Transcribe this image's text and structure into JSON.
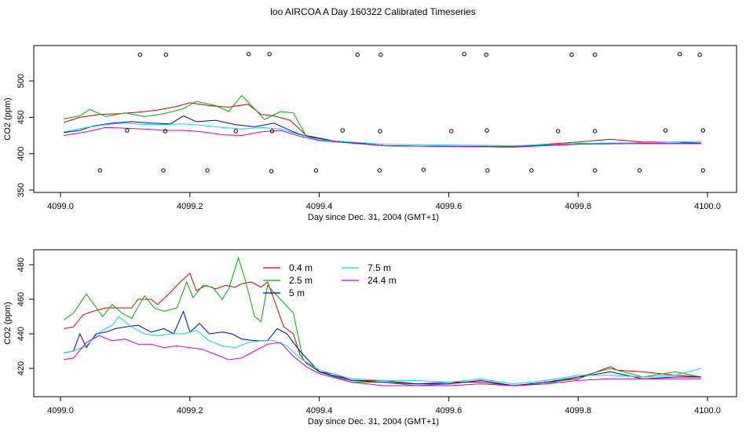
{
  "title": "loo AIRCOA A  Day 160322  Calibrated Timeseries",
  "chart_data": [
    {
      "type": "scatter",
      "panel": "top",
      "xlabel": "Day since Dec. 31, 2004 (GMT+1)",
      "ylabel": "CO2 (ppm)",
      "xlim": [
        4099.0,
        4100.0
      ],
      "ylim": [
        350,
        540
      ],
      "xticks": [
        4099.0,
        4099.2,
        4099.4,
        4099.6,
        4099.8,
        4100.0
      ],
      "xtick_labels": [
        "4099.0",
        "4099.2",
        "4099.4",
        "4099.6",
        "4099.8",
        "4100.0"
      ],
      "yticks": [
        350,
        400,
        450,
        500
      ],
      "ytick_labels": [
        "350",
        "400",
        "450",
        "500"
      ],
      "calibration_points": [
        {
          "x": 4099.123,
          "y": 536
        },
        {
          "x": 4099.163,
          "y": 536
        },
        {
          "x": 4099.291,
          "y": 537
        },
        {
          "x": 4099.323,
          "y": 537
        },
        {
          "x": 4099.459,
          "y": 536
        },
        {
          "x": 4099.495,
          "y": 536
        },
        {
          "x": 4099.624,
          "y": 537
        },
        {
          "x": 4099.658,
          "y": 536
        },
        {
          "x": 4099.79,
          "y": 536
        },
        {
          "x": 4099.826,
          "y": 536
        },
        {
          "x": 4099.957,
          "y": 537
        },
        {
          "x": 4099.988,
          "y": 536
        },
        {
          "x": 4099.103,
          "y": 432
        },
        {
          "x": 4099.162,
          "y": 431
        },
        {
          "x": 4099.271,
          "y": 431
        },
        {
          "x": 4099.327,
          "y": 431
        },
        {
          "x": 4099.436,
          "y": 432
        },
        {
          "x": 4099.494,
          "y": 431
        },
        {
          "x": 4099.604,
          "y": 431
        },
        {
          "x": 4099.659,
          "y": 432
        },
        {
          "x": 4099.769,
          "y": 431
        },
        {
          "x": 4099.826,
          "y": 431
        },
        {
          "x": 4099.935,
          "y": 432
        },
        {
          "x": 4099.993,
          "y": 432
        },
        {
          "x": 4099.061,
          "y": 377
        },
        {
          "x": 4099.159,
          "y": 377
        },
        {
          "x": 4099.227,
          "y": 377
        },
        {
          "x": 4099.326,
          "y": 376
        },
        {
          "x": 4099.395,
          "y": 377
        },
        {
          "x": 4099.493,
          "y": 377
        },
        {
          "x": 4099.561,
          "y": 378
        },
        {
          "x": 4099.66,
          "y": 377
        },
        {
          "x": 4099.728,
          "y": 377
        },
        {
          "x": 4099.826,
          "y": 377
        },
        {
          "x": 4099.895,
          "y": 377
        },
        {
          "x": 4099.993,
          "y": 377
        }
      ],
      "series": [
        {
          "color": "#d00000",
          "x": [
            4099.005,
            4099.03,
            4099.06,
            4099.09,
            4099.12,
            4099.15,
            4099.18,
            4099.2,
            4099.23,
            4099.26,
            4099.29,
            4099.31,
            4099.33,
            4099.355,
            4099.38,
            4099.42,
            4099.5,
            4099.6,
            4099.7,
            4099.8,
            4099.85,
            4099.9,
            4099.95,
            4099.99
          ],
          "y": [
            443,
            450,
            454,
            455,
            457,
            460,
            465,
            470,
            466,
            464,
            468,
            454,
            452,
            446,
            425,
            418,
            411,
            410,
            410,
            416,
            420,
            416,
            416,
            414
          ]
        },
        {
          "color": "#00aa00",
          "x": [
            4099.005,
            4099.03,
            4099.045,
            4099.07,
            4099.1,
            4099.13,
            4099.16,
            4099.19,
            4099.21,
            4099.24,
            4099.26,
            4099.28,
            4099.3,
            4099.315,
            4099.34,
            4099.36,
            4099.38,
            4099.42,
            4099.5,
            4099.6,
            4099.7,
            4099.8,
            4099.9,
            4099.95,
            4099.99
          ],
          "y": [
            448,
            452,
            461,
            451,
            456,
            451,
            455,
            462,
            472,
            466,
            458,
            480,
            462,
            447,
            458,
            456,
            424,
            418,
            411,
            410,
            410,
            414,
            415,
            416,
            415
          ]
        },
        {
          "color": "#0000cc",
          "x": [
            4099.005,
            4099.03,
            4099.05,
            4099.08,
            4099.11,
            4099.14,
            4099.17,
            4099.19,
            4099.21,
            4099.24,
            4099.27,
            4099.3,
            4099.33,
            4099.36,
            4099.38,
            4099.42,
            4099.5,
            4099.6,
            4099.7,
            4099.8,
            4099.9,
            4099.99
          ],
          "y": [
            429,
            432,
            438,
            442,
            444,
            442,
            441,
            452,
            444,
            446,
            440,
            437,
            442,
            430,
            424,
            418,
            411,
            410,
            409,
            414,
            414,
            414
          ]
        },
        {
          "color": "#00dddd",
          "x": [
            4099.005,
            4099.04,
            4099.07,
            4099.1,
            4099.13,
            4099.16,
            4099.19,
            4099.22,
            4099.25,
            4099.28,
            4099.31,
            4099.34,
            4099.37,
            4099.4,
            4099.5,
            4099.6,
            4099.7,
            4099.8,
            4099.9,
            4099.99
          ],
          "y": [
            430,
            436,
            440,
            442,
            440,
            440,
            441,
            439,
            436,
            434,
            436,
            434,
            426,
            419,
            413,
            412,
            411,
            414,
            415,
            417
          ]
        },
        {
          "color": "#cc00cc",
          "x": [
            4099.005,
            4099.04,
            4099.07,
            4099.1,
            4099.13,
            4099.16,
            4099.19,
            4099.22,
            4099.25,
            4099.28,
            4099.31,
            4099.34,
            4099.37,
            4099.4,
            4099.5,
            4099.6,
            4099.7,
            4099.8,
            4099.9,
            4099.99
          ],
          "y": [
            425,
            430,
            436,
            435,
            434,
            432,
            432,
            430,
            426,
            425,
            430,
            432,
            424,
            418,
            411,
            410,
            409,
            413,
            414,
            414
          ]
        }
      ]
    },
    {
      "type": "line",
      "panel": "bottom",
      "xlabel": "Day since Dec. 31, 2004 (GMT+1)",
      "ylabel": "CO2 (ppm)",
      "xlim": [
        4099.0,
        4100.0
      ],
      "ylim": [
        405,
        485
      ],
      "xticks": [
        4099.0,
        4099.2,
        4099.4,
        4099.6,
        4099.8,
        4100.0
      ],
      "xtick_labels": [
        "4099.0",
        "4099.2",
        "4099.4",
        "4099.6",
        "4099.8",
        "4100.0"
      ],
      "yticks": [
        420,
        440,
        460,
        480
      ],
      "ytick_labels": [
        "420",
        "440",
        "460",
        "480"
      ],
      "legend": {
        "placement": "top-left-inside",
        "order": [
          "0.4 m",
          "2.5 m",
          "5 m",
          "7.5 m",
          "24.4 m"
        ]
      },
      "series": [
        {
          "name": "0.4 m",
          "color": "#d00000",
          "x": [
            4099.005,
            4099.02,
            4099.035,
            4099.05,
            4099.07,
            4099.09,
            4099.11,
            4099.12,
            4099.14,
            4099.15,
            4099.17,
            4099.185,
            4099.2,
            4099.21,
            4099.225,
            4099.24,
            4099.255,
            4099.27,
            4099.28,
            4099.295,
            4099.31,
            4099.32,
            4099.33,
            4099.345,
            4099.36,
            4099.37,
            4099.38,
            4099.4,
            4099.42,
            4099.45,
            4099.5,
            4099.55,
            4099.6,
            4099.65,
            4099.7,
            4099.75,
            4099.8,
            4099.85,
            4099.86,
            4099.9,
            4099.95,
            4099.99
          ],
          "y": [
            443,
            444,
            451,
            453,
            455,
            455,
            455,
            460,
            460,
            457,
            464,
            470,
            475,
            465,
            468,
            466,
            468,
            467,
            469,
            470,
            467,
            470,
            460,
            444,
            440,
            428,
            423,
            418,
            417,
            413,
            413,
            411,
            412,
            412,
            410,
            412,
            414,
            421,
            419,
            418,
            416,
            415
          ]
        },
        {
          "name": "2.5 m",
          "color": "#00aa00",
          "x": [
            4099.005,
            4099.02,
            4099.04,
            4099.05,
            4099.065,
            4099.08,
            4099.095,
            4099.11,
            4099.13,
            4099.145,
            4099.16,
            4099.18,
            4099.195,
            4099.205,
            4099.22,
            4099.235,
            4099.25,
            4099.26,
            4099.275,
            4099.285,
            4099.3,
            4099.31,
            4099.32,
            4099.335,
            4099.345,
            4099.36,
            4099.375,
            4099.4,
            4099.45,
            4099.5,
            4099.55,
            4099.6,
            4099.65,
            4099.7,
            4099.75,
            4099.8,
            4099.85,
            4099.9,
            4099.95,
            4099.99
          ],
          "y": [
            448,
            452,
            463,
            458,
            450,
            457,
            452,
            449,
            462,
            455,
            453,
            455,
            470,
            461,
            468,
            467,
            460,
            466,
            484,
            472,
            450,
            447,
            468,
            462,
            458,
            452,
            425,
            418,
            412,
            412,
            410,
            411,
            413,
            410,
            411,
            415,
            420,
            415,
            418,
            415
          ]
        },
        {
          "name": "5 m",
          "color": "#0000cc",
          "x": [
            4099.005,
            4099.02,
            4099.03,
            4099.04,
            4099.055,
            4099.07,
            4099.085,
            4099.1,
            4099.12,
            4099.14,
            4099.16,
            4099.175,
            4099.19,
            4099.2,
            4099.215,
            4099.23,
            4099.25,
            4099.265,
            4099.28,
            4099.3,
            4099.32,
            4099.335,
            4099.35,
            4099.37,
            4099.4,
            4099.45,
            4099.5,
            4099.55,
            4099.6,
            4099.65,
            4099.7,
            4099.75,
            4099.8,
            4099.85,
            4099.9,
            4099.95,
            4099.99
          ],
          "y": [
            429,
            430,
            440,
            432,
            440,
            441,
            443,
            444,
            445,
            441,
            443,
            440,
            453,
            441,
            446,
            440,
            441,
            440,
            437,
            436,
            436,
            443,
            440,
            430,
            418,
            413,
            412,
            411,
            411,
            413,
            410,
            412,
            415,
            418,
            414,
            415,
            415
          ]
        },
        {
          "name": "7.5 m",
          "color": "#00dddd",
          "x": [
            4099.005,
            4099.02,
            4099.04,
            4099.06,
            4099.08,
            4099.09,
            4099.11,
            4099.13,
            4099.15,
            4099.17,
            4099.19,
            4099.21,
            4099.23,
            4099.25,
            4099.27,
            4099.29,
            4099.31,
            4099.33,
            4099.35,
            4099.37,
            4099.4,
            4099.45,
            4099.5,
            4099.55,
            4099.6,
            4099.65,
            4099.7,
            4099.75,
            4099.8,
            4099.85,
            4099.9,
            4099.95,
            4099.99
          ],
          "y": [
            429,
            430,
            433,
            441,
            445,
            450,
            444,
            440,
            439,
            440,
            440,
            442,
            436,
            433,
            432,
            435,
            436,
            436,
            433,
            426,
            419,
            414,
            413,
            413,
            412,
            414,
            411,
            413,
            416,
            416,
            415,
            416,
            420
          ]
        },
        {
          "name": "24.4 m",
          "color": "#cc00cc",
          "x": [
            4099.005,
            4099.02,
            4099.04,
            4099.06,
            4099.08,
            4099.1,
            4099.12,
            4099.14,
            4099.16,
            4099.18,
            4099.2,
            4099.22,
            4099.24,
            4099.26,
            4099.28,
            4099.3,
            4099.32,
            4099.34,
            4099.36,
            4099.38,
            4099.4,
            4099.45,
            4099.5,
            4099.55,
            4099.6,
            4099.65,
            4099.7,
            4099.75,
            4099.8,
            4099.85,
            4099.9,
            4099.95,
            4099.99
          ],
          "y": [
            425,
            426,
            435,
            439,
            436,
            437,
            434,
            434,
            432,
            433,
            432,
            431,
            428,
            425,
            426,
            430,
            434,
            435,
            427,
            421,
            417,
            412,
            410,
            410,
            410,
            411,
            410,
            411,
            413,
            414,
            414,
            414,
            414
          ]
        }
      ]
    }
  ]
}
